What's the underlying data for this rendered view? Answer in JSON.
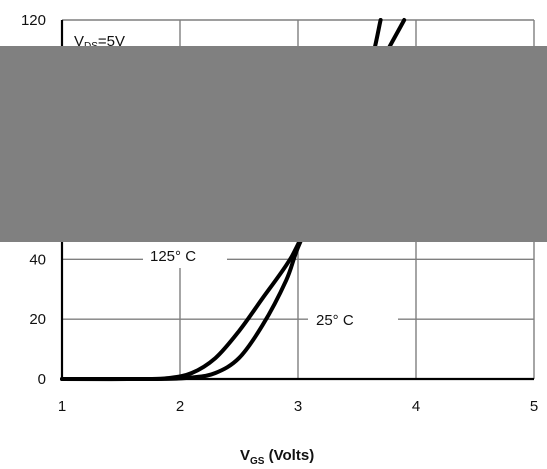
{
  "chart_data": {
    "type": "line",
    "xlabel_main": "V",
    "xlabel_sub": "GS",
    "xlabel_rest": " (Volts)",
    "xlim": [
      1,
      5
    ],
    "ylim": [
      0,
      120
    ],
    "xticks": [
      1,
      2,
      3,
      4,
      5
    ],
    "yticks": [
      0,
      20,
      40,
      120
    ],
    "grid": true,
    "condition_main": "V",
    "condition_sub": "DS",
    "condition_rest": "=5V",
    "series": [
      {
        "name": "25° C",
        "x": [
          1.0,
          1.8,
          2.1,
          2.3,
          2.5,
          2.7,
          2.9,
          3.0,
          3.2,
          3.4,
          3.6,
          3.7
        ],
        "y": [
          0,
          0,
          0.5,
          2,
          7,
          18,
          33,
          44,
          62,
          82,
          103,
          120
        ]
      },
      {
        "name": "125° C",
        "x": [
          1.0,
          1.7,
          1.9,
          2.1,
          2.3,
          2.5,
          2.7,
          2.9,
          3.0,
          3.2,
          3.4,
          3.6,
          3.9
        ],
        "y": [
          0,
          0,
          0.3,
          2,
          7,
          16,
          27,
          38,
          45,
          62,
          80,
          98,
          120
        ]
      }
    ],
    "annotations": [
      "125° C",
      "25° C"
    ]
  },
  "overlay_color": "#808080"
}
